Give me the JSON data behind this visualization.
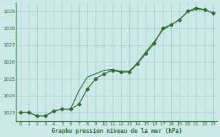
{
  "line_marker_x": [
    0,
    1,
    2,
    3,
    4,
    5,
    6,
    7,
    8,
    9,
    10,
    11,
    12,
    13,
    14,
    15,
    16,
    17,
    18,
    19,
    20,
    21,
    22,
    23
  ],
  "line_marker_y": [
    1023.0,
    1023.0,
    1022.8,
    1022.8,
    1023.1,
    1023.2,
    1023.2,
    1023.5,
    1024.4,
    1025.0,
    1025.3,
    1025.5,
    1025.4,
    1025.4,
    1025.9,
    1026.5,
    1027.1,
    1028.0,
    1028.2,
    1028.5,
    1029.0,
    1029.2,
    1029.1,
    1028.9
  ],
  "line_smooth_x": [
    0,
    1,
    2,
    3,
    4,
    5,
    6,
    7,
    8,
    9,
    10,
    11,
    12,
    13,
    14,
    15,
    16,
    17,
    18,
    19,
    20,
    21,
    22,
    23
  ],
  "line_smooth_y": [
    1023.0,
    1023.0,
    1022.8,
    1022.8,
    1023.1,
    1023.2,
    1023.2,
    1024.3,
    1025.1,
    1025.3,
    1025.5,
    1025.55,
    1025.45,
    1025.45,
    1025.95,
    1026.6,
    1027.2,
    1027.9,
    1028.2,
    1028.5,
    1029.0,
    1029.1,
    1029.1,
    1028.9
  ],
  "xlabel": "Graphe pression niveau de la mer (hPa)",
  "ylim": [
    1022.5,
    1029.5
  ],
  "xlim": [
    -0.5,
    23.5
  ],
  "yticks": [
    1023,
    1024,
    1025,
    1026,
    1027,
    1028,
    1029
  ],
  "xticks": [
    0,
    1,
    2,
    3,
    4,
    5,
    6,
    7,
    8,
    9,
    10,
    11,
    12,
    13,
    14,
    15,
    16,
    17,
    18,
    19,
    20,
    21,
    22,
    23
  ],
  "line_color": "#2d6e2d",
  "bg_color": "#cce8e8",
  "grid_color": "#a8cccc",
  "markersize": 2.5,
  "linewidth": 0.9,
  "xlabel_fontsize": 6.0,
  "tick_fontsize": 5.0
}
